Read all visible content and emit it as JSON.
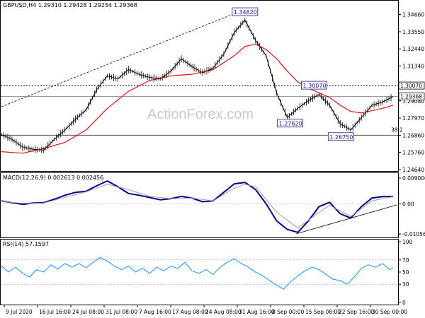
{
  "chart_data": [
    {
      "type": "line",
      "panel": "price",
      "header": "GBPUSD,H4  1.29310 1.29428 1.29254 1.29368",
      "watermark": "ActionForex.com",
      "ylim": [
        1.2464,
        1.3496
      ],
      "yticks": [
        "1.34660",
        "1.33550",
        "1.32440",
        "1.31340",
        "1.30070",
        "1.29080",
        "1.27970",
        "1.26860",
        "1.25760",
        "1.24640"
      ],
      "xticks": [
        "9 Jul 2020",
        "16 Jul 16:00",
        "24 Jul 08:00",
        "31 Jul 08:00",
        "7 Aug 16:00",
        "17 Aug 08:00",
        "24 Aug 08:00",
        "31 Aug 16:00",
        "8 Sep 00:00",
        "15 Sep 08:00",
        "22 Sep 16:00",
        "30 Sep 00:00"
      ],
      "series": [
        {
          "values": [
            {
              "x": 0,
              "y": 1.269
            },
            {
              "x": 15,
              "y": 1.266
            },
            {
              "x": 30,
              "y": 1.261
            },
            {
              "x": 45,
              "y": 1.2595
            },
            {
              "x": 60,
              "y": 1.259
            },
            {
              "x": 75,
              "y": 1.266
            },
            {
              "x": 90,
              "y": 1.272
            },
            {
              "x": 105,
              "y": 1.279
            },
            {
              "x": 120,
              "y": 1.285
            },
            {
              "x": 135,
              "y": 1.298
            },
            {
              "x": 150,
              "y": 1.307
            },
            {
              "x": 165,
              "y": 1.305
            },
            {
              "x": 180,
              "y": 1.311
            },
            {
              "x": 195,
              "y": 1.308
            },
            {
              "x": 210,
              "y": 1.306
            },
            {
              "x": 225,
              "y": 1.305
            },
            {
              "x": 240,
              "y": 1.31
            },
            {
              "x": 255,
              "y": 1.318
            },
            {
              "x": 270,
              "y": 1.313
            },
            {
              "x": 285,
              "y": 1.309
            },
            {
              "x": 300,
              "y": 1.312
            },
            {
              "x": 315,
              "y": 1.321
            },
            {
              "x": 330,
              "y": 1.335
            },
            {
              "x": 345,
              "y": 1.343
            },
            {
              "x": 360,
              "y": 1.33
            },
            {
              "x": 375,
              "y": 1.32
            },
            {
              "x": 390,
              "y": 1.296
            },
            {
              "x": 405,
              "y": 1.28
            },
            {
              "x": 420,
              "y": 1.286
            },
            {
              "x": 435,
              "y": 1.291
            },
            {
              "x": 450,
              "y": 1.295
            },
            {
              "x": 465,
              "y": 1.288
            },
            {
              "x": 480,
              "y": 1.276
            },
            {
              "x": 495,
              "y": 1.272
            },
            {
              "x": 510,
              "y": 1.28
            },
            {
              "x": 525,
              "y": 1.288
            },
            {
              "x": 540,
              "y": 1.29
            },
            {
              "x": 555,
              "y": 1.2936
            }
          ]
        },
        {
          "values": [
            {
              "x": 0,
              "y": 1.258
            },
            {
              "x": 30,
              "y": 1.257
            },
            {
              "x": 60,
              "y": 1.26
            },
            {
              "x": 90,
              "y": 1.264
            },
            {
              "x": 120,
              "y": 1.272
            },
            {
              "x": 150,
              "y": 1.286
            },
            {
              "x": 180,
              "y": 1.297
            },
            {
              "x": 210,
              "y": 1.304
            },
            {
              "x": 240,
              "y": 1.307
            },
            {
              "x": 270,
              "y": 1.308
            },
            {
              "x": 300,
              "y": 1.311
            },
            {
              "x": 330,
              "y": 1.32
            },
            {
              "x": 345,
              "y": 1.326
            },
            {
              "x": 360,
              "y": 1.3275
            },
            {
              "x": 375,
              "y": 1.324
            },
            {
              "x": 390,
              "y": 1.318
            },
            {
              "x": 405,
              "y": 1.31
            },
            {
              "x": 420,
              "y": 1.303
            },
            {
              "x": 435,
              "y": 1.299
            },
            {
              "x": 450,
              "y": 1.296
            },
            {
              "x": 465,
              "y": 1.293
            },
            {
              "x": 480,
              "y": 1.288
            },
            {
              "x": 495,
              "y": 1.284
            },
            {
              "x": 510,
              "y": 1.283
            },
            {
              "x": 525,
              "y": 1.2845
            },
            {
              "x": 540,
              "y": 1.286
            },
            {
              "x": 555,
              "y": 1.288
            }
          ]
        }
      ],
      "annotations": [
        {
          "text": "1.34820",
          "x": 329,
          "y": 1.3482
        },
        {
          "text": "1.30070",
          "x": 427,
          "y": 1.3007
        },
        {
          "text": "1.27620",
          "x": 393,
          "y": 1.2762
        },
        {
          "text": "1.26750",
          "x": 465,
          "y": 1.2675
        },
        {
          "text": "38.2",
          "x": 552,
          "y": 1.27
        }
      ],
      "level_lines": [
        {
          "label": "1.30070",
          "y": 1.3007,
          "style": "dotted"
        },
        {
          "label": "1.29368",
          "y": 1.29368,
          "style": "solid"
        },
        {
          "y": 1.2686,
          "style": "solid"
        }
      ],
      "colors": {
        "price": "#000000",
        "ma": "#e01010",
        "label_border": "#1a1a8c",
        "trend": "#000000"
      }
    },
    {
      "type": "line",
      "panel": "macd",
      "header": "MACD(12,26,9) 0.002613 0.002456",
      "ylim": [
        -0.0113,
        0.0095
      ],
      "yticks": [
        "0.009000",
        "0.00",
        "-0.010566"
      ],
      "series": [
        {
          "values": [
            {
              "x": 0,
              "y": 0.001
            },
            {
              "x": 15,
              "y": 0.0004
            },
            {
              "x": 30,
              "y": -0.0002
            },
            {
              "x": 45,
              "y": 0.0003
            },
            {
              "x": 60,
              "y": 0.0004
            },
            {
              "x": 75,
              "y": 0.0016
            },
            {
              "x": 90,
              "y": 0.003
            },
            {
              "x": 105,
              "y": 0.004
            },
            {
              "x": 120,
              "y": 0.0044
            },
            {
              "x": 135,
              "y": 0.0063
            },
            {
              "x": 150,
              "y": 0.008
            },
            {
              "x": 165,
              "y": 0.006
            },
            {
              "x": 180,
              "y": 0.0036
            },
            {
              "x": 195,
              "y": 0.003
            },
            {
              "x": 210,
              "y": 0.0022
            },
            {
              "x": 225,
              "y": 0.0014
            },
            {
              "x": 240,
              "y": 0.0018
            },
            {
              "x": 255,
              "y": 0.0026
            },
            {
              "x": 270,
              "y": 0.002
            },
            {
              "x": 285,
              "y": 0.0007
            },
            {
              "x": 300,
              "y": 0.001
            },
            {
              "x": 315,
              "y": 0.004
            },
            {
              "x": 330,
              "y": 0.007
            },
            {
              "x": 345,
              "y": 0.0075
            },
            {
              "x": 360,
              "y": 0.005
            },
            {
              "x": 375,
              "y": 0.0
            },
            {
              "x": 390,
              "y": -0.006
            },
            {
              "x": 405,
              "y": -0.009
            },
            {
              "x": 420,
              "y": -0.01
            },
            {
              "x": 435,
              "y": -0.006
            },
            {
              "x": 450,
              "y": -0.001
            },
            {
              "x": 465,
              "y": 0.0005
            },
            {
              "x": 480,
              "y": -0.0035
            },
            {
              "x": 495,
              "y": -0.005
            },
            {
              "x": 510,
              "y": -0.001
            },
            {
              "x": 525,
              "y": 0.002
            },
            {
              "x": 540,
              "y": 0.0025
            },
            {
              "x": 555,
              "y": 0.0026
            }
          ]
        },
        {
          "values": [
            {
              "x": 0,
              "y": 0.0008
            },
            {
              "x": 30,
              "y": 0.0002
            },
            {
              "x": 60,
              "y": 0.0003
            },
            {
              "x": 90,
              "y": 0.0022
            },
            {
              "x": 120,
              "y": 0.0042
            },
            {
              "x": 150,
              "y": 0.0068
            },
            {
              "x": 180,
              "y": 0.005
            },
            {
              "x": 210,
              "y": 0.0026
            },
            {
              "x": 240,
              "y": 0.0018
            },
            {
              "x": 270,
              "y": 0.002
            },
            {
              "x": 300,
              "y": 0.001
            },
            {
              "x": 330,
              "y": 0.0055
            },
            {
              "x": 345,
              "y": 0.0068
            },
            {
              "x": 360,
              "y": 0.006
            },
            {
              "x": 390,
              "y": -0.003
            },
            {
              "x": 420,
              "y": -0.0085
            },
            {
              "x": 450,
              "y": -0.003
            },
            {
              "x": 465,
              "y": -0.0005
            },
            {
              "x": 495,
              "y": -0.0045
            },
            {
              "x": 525,
              "y": 0.001
            },
            {
              "x": 555,
              "y": 0.0025
            }
          ]
        }
      ],
      "colors": {
        "macd": "#00008b",
        "signal": "#a0a0a0",
        "trend": "#000000"
      }
    },
    {
      "type": "line",
      "panel": "rsi",
      "header": "RSI(14) 57.1597",
      "ylim": [
        0,
        100
      ],
      "yticks": [
        "100",
        "70",
        "50",
        "30",
        "0"
      ],
      "series": [
        {
          "values": [
            {
              "x": 0,
              "y": 60
            },
            {
              "x": 10,
              "y": 50
            },
            {
              "x": 20,
              "y": 58
            },
            {
              "x": 30,
              "y": 48
            },
            {
              "x": 40,
              "y": 42
            },
            {
              "x": 50,
              "y": 54
            },
            {
              "x": 60,
              "y": 50
            },
            {
              "x": 70,
              "y": 62
            },
            {
              "x": 80,
              "y": 55
            },
            {
              "x": 90,
              "y": 64
            },
            {
              "x": 100,
              "y": 58
            },
            {
              "x": 110,
              "y": 64
            },
            {
              "x": 120,
              "y": 57
            },
            {
              "x": 130,
              "y": 66
            },
            {
              "x": 140,
              "y": 74
            },
            {
              "x": 150,
              "y": 68
            },
            {
              "x": 160,
              "y": 60
            },
            {
              "x": 170,
              "y": 54
            },
            {
              "x": 180,
              "y": 60
            },
            {
              "x": 190,
              "y": 50
            },
            {
              "x": 200,
              "y": 56
            },
            {
              "x": 210,
              "y": 48
            },
            {
              "x": 220,
              "y": 58
            },
            {
              "x": 230,
              "y": 52
            },
            {
              "x": 240,
              "y": 60
            },
            {
              "x": 250,
              "y": 56
            },
            {
              "x": 260,
              "y": 66
            },
            {
              "x": 270,
              "y": 52
            },
            {
              "x": 280,
              "y": 48
            },
            {
              "x": 290,
              "y": 54
            },
            {
              "x": 300,
              "y": 46
            },
            {
              "x": 310,
              "y": 58
            },
            {
              "x": 320,
              "y": 66
            },
            {
              "x": 330,
              "y": 72
            },
            {
              "x": 340,
              "y": 64
            },
            {
              "x": 350,
              "y": 58
            },
            {
              "x": 360,
              "y": 50
            },
            {
              "x": 370,
              "y": 44
            },
            {
              "x": 380,
              "y": 36
            },
            {
              "x": 390,
              "y": 28
            },
            {
              "x": 400,
              "y": 22
            },
            {
              "x": 410,
              "y": 34
            },
            {
              "x": 420,
              "y": 44
            },
            {
              "x": 430,
              "y": 52
            },
            {
              "x": 440,
              "y": 58
            },
            {
              "x": 450,
              "y": 54
            },
            {
              "x": 460,
              "y": 46
            },
            {
              "x": 470,
              "y": 38
            },
            {
              "x": 480,
              "y": 36
            },
            {
              "x": 490,
              "y": 30
            },
            {
              "x": 500,
              "y": 42
            },
            {
              "x": 510,
              "y": 56
            },
            {
              "x": 520,
              "y": 62
            },
            {
              "x": 530,
              "y": 58
            },
            {
              "x": 540,
              "y": 64
            },
            {
              "x": 550,
              "y": 54
            },
            {
              "x": 555,
              "y": 57
            }
          ]
        }
      ],
      "colors": {
        "rsi": "#1e90ff"
      }
    }
  ]
}
